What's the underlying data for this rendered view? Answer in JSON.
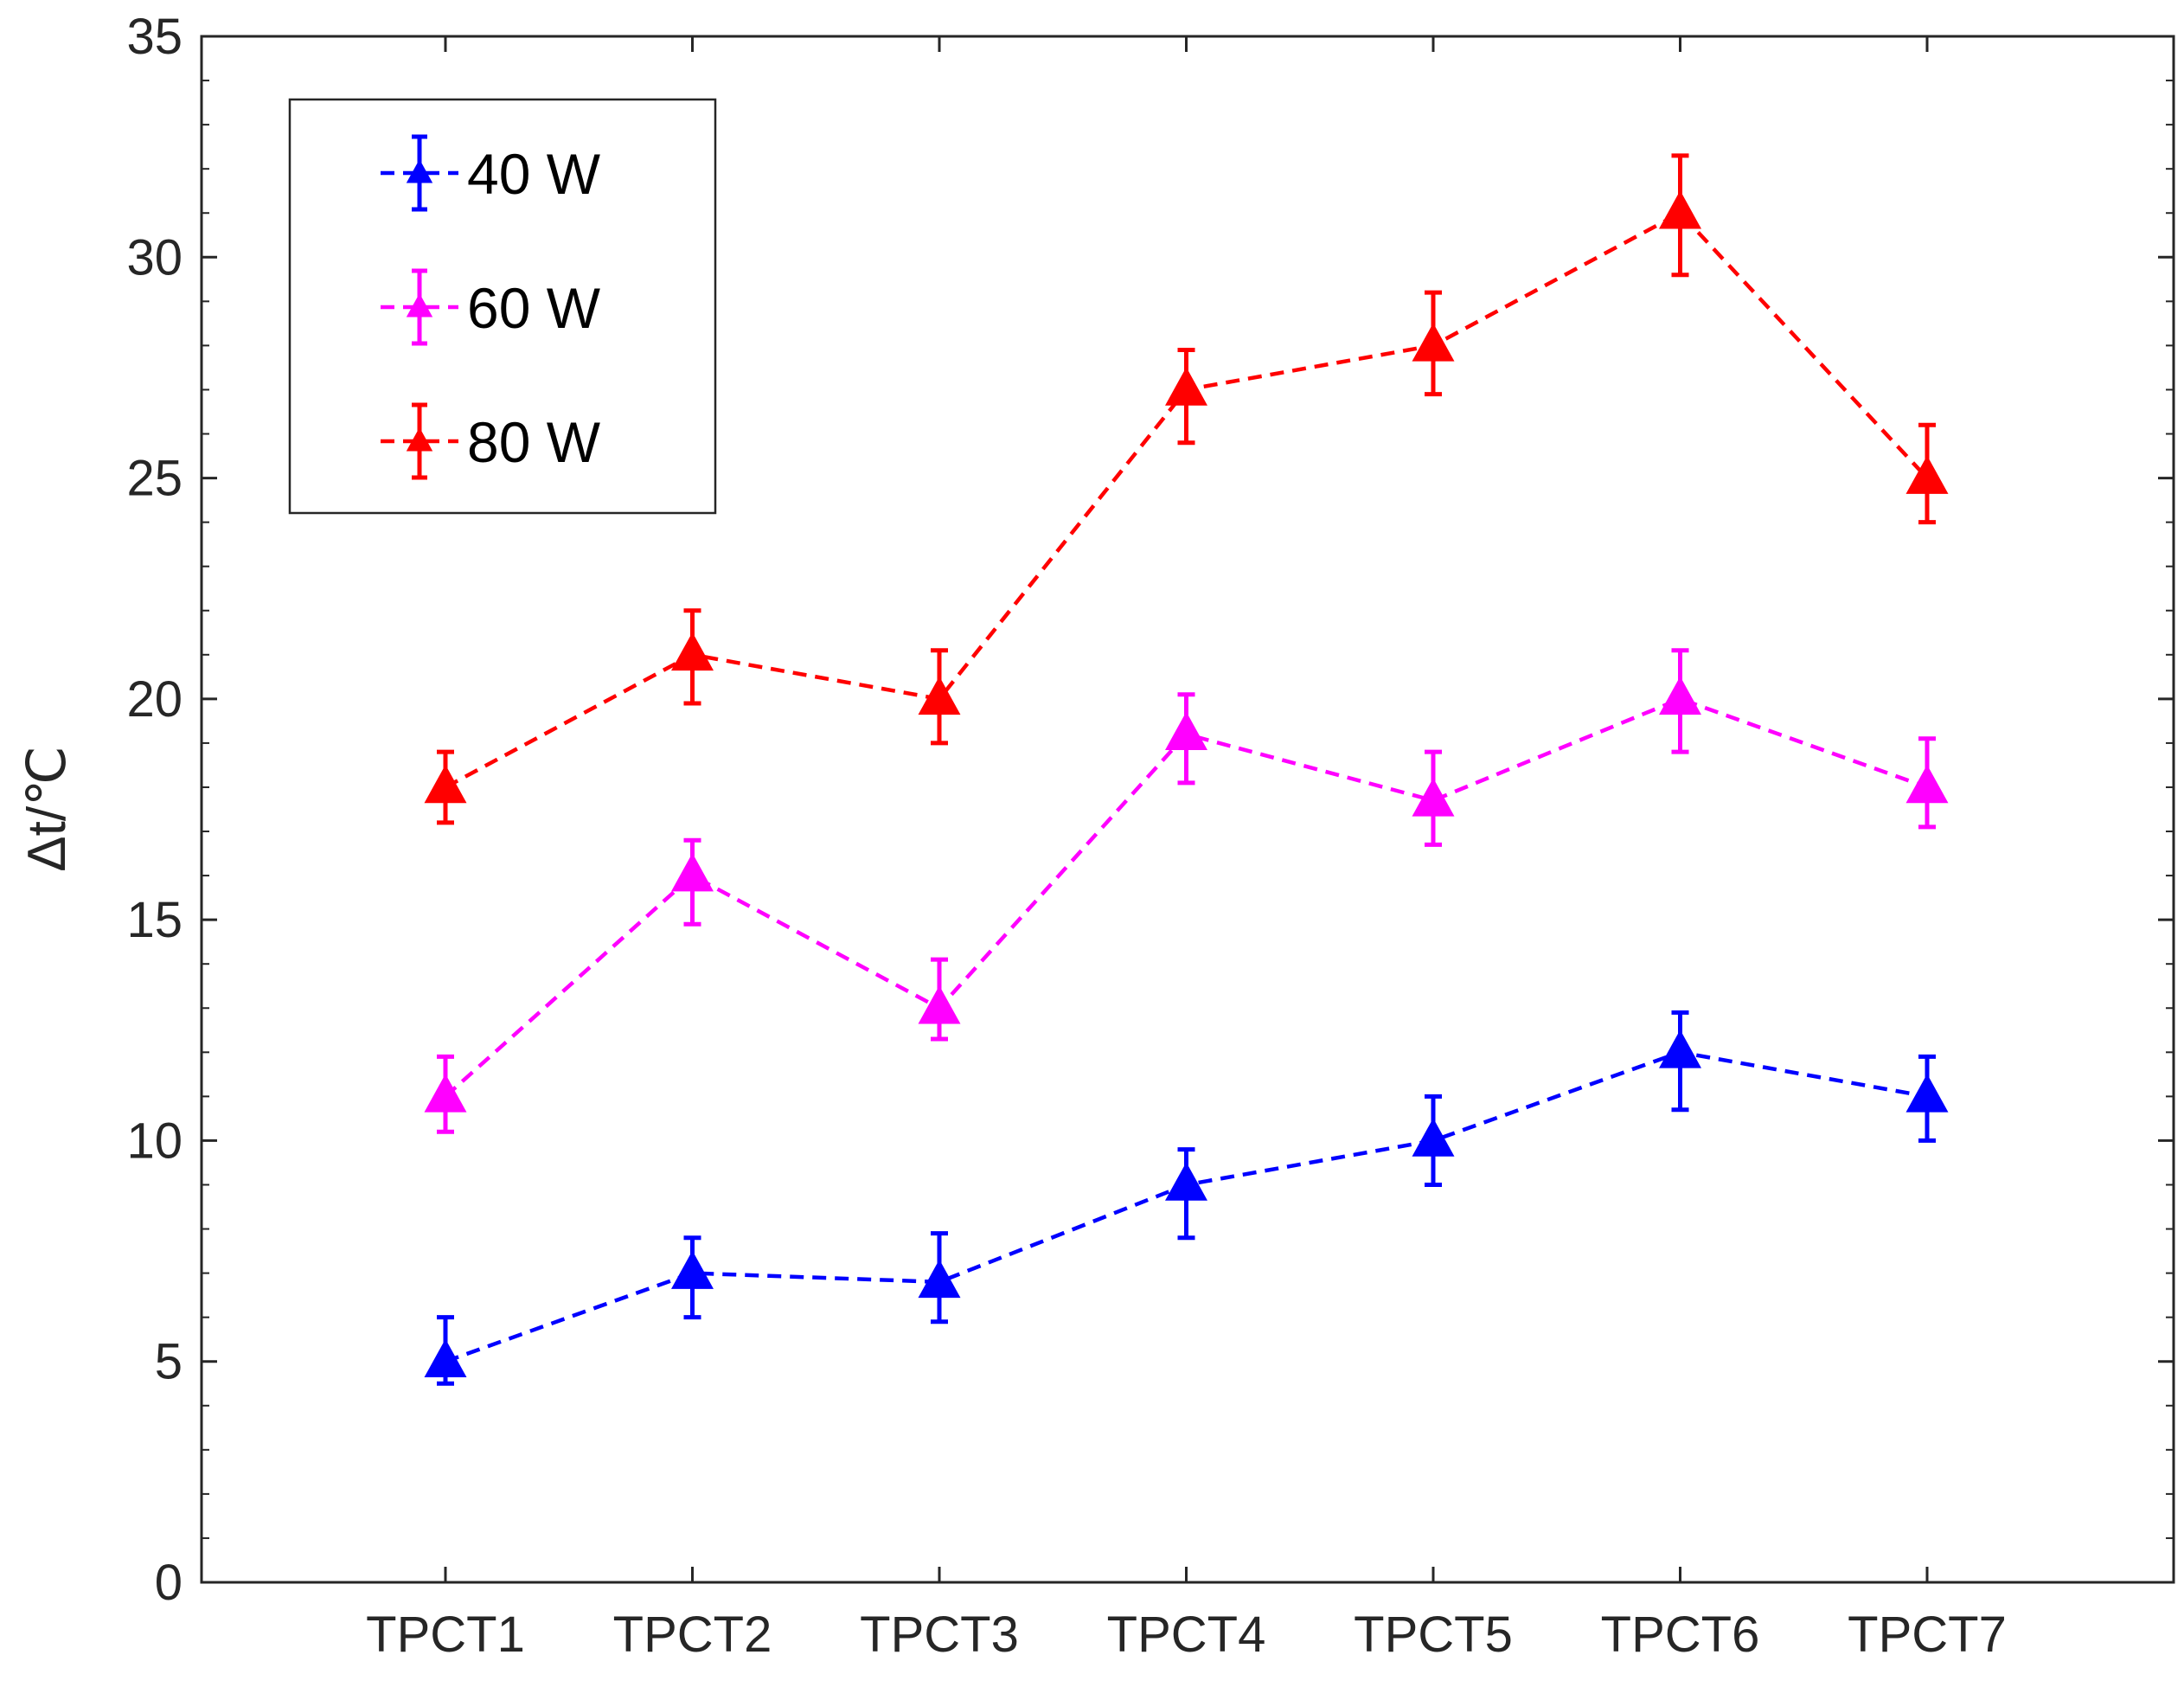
{
  "chart_data": {
    "type": "line",
    "title": "",
    "xlabel": "",
    "ylabel": "Δt/℃",
    "categories": [
      "TPCT1",
      "TPCT2",
      "TPCT3",
      "TPCT4",
      "TPCT5",
      "TPCT6",
      "TPCT7"
    ],
    "ylim": [
      0,
      35
    ],
    "yticks": [
      0,
      5,
      10,
      15,
      20,
      25,
      30,
      35
    ],
    "yticklabels": [
      "0",
      "5",
      "10",
      "15",
      "20",
      "25",
      "30",
      "35"
    ],
    "legend_position": "top-left",
    "marker": "triangle",
    "line_style": "dashed",
    "error_bars": true,
    "series": [
      {
        "name": "40 W",
        "color": "#0000ff",
        "values": [
          5.0,
          7.0,
          6.8,
          9.0,
          10.0,
          12.0,
          11.0
        ],
        "err_low": [
          4.5,
          6.0,
          5.9,
          7.8,
          9.0,
          10.7,
          10.0
        ],
        "err_high": [
          6.0,
          7.8,
          7.9,
          9.8,
          11.0,
          12.9,
          11.9
        ]
      },
      {
        "name": "60 W",
        "color": "#ff00ff",
        "values": [
          11.0,
          16.0,
          13.0,
          19.2,
          17.7,
          20.0,
          18.0
        ],
        "err_low": [
          10.2,
          14.9,
          12.3,
          18.1,
          16.7,
          18.8,
          17.1
        ],
        "err_high": [
          11.9,
          16.8,
          14.1,
          20.1,
          18.8,
          21.1,
          19.1
        ]
      },
      {
        "name": "80 W",
        "color": "#ff0000",
        "values": [
          18.0,
          21.0,
          20.0,
          27.0,
          28.0,
          31.0,
          25.0
        ],
        "err_low": [
          17.2,
          19.9,
          19.0,
          25.8,
          26.9,
          29.6,
          24.0
        ],
        "err_high": [
          18.8,
          22.0,
          21.1,
          27.9,
          29.2,
          32.3,
          26.2
        ]
      }
    ]
  }
}
